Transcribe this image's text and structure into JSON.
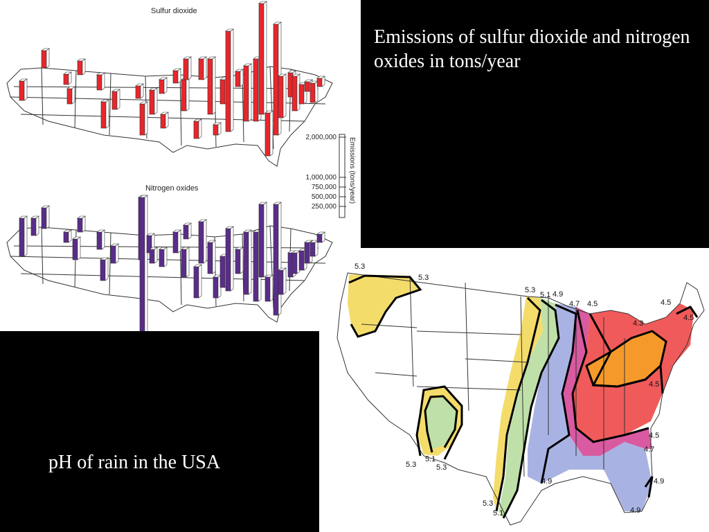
{
  "slide": {
    "emissions_caption": "Emissions of sulfur dioxide and nitrogen oxides in tons/year",
    "ph_caption": "pH of rain in the USA"
  },
  "emissions_figure": {
    "so2_title": "Sulfur dioxide",
    "nox_title": "Nitrogen oxides",
    "scale_axis_label": "Emissions (tons/year)",
    "scale_ticks": [
      "2,000,000",
      "1,000,000",
      "750,000",
      "500,000",
      "250,000"
    ],
    "so2_color": "#e8262b",
    "nox_color": "#5a2d8a"
  },
  "ph_map": {
    "zone_colors": {
      "5.3": "#f4dc6a",
      "5.1": "#bfe0a8",
      "4.9": "#a9b3e3",
      "4.7": "#d95aa0",
      "4.5": "#f05a5a",
      "4.3": "#f59a2a"
    },
    "contour_labels": [
      {
        "id": "pnw-53a",
        "text": "5.3"
      },
      {
        "id": "pnw-53b",
        "text": "5.3"
      },
      {
        "id": "n-53",
        "text": "5.3"
      },
      {
        "id": "n-51",
        "text": "5.1"
      },
      {
        "id": "n-49",
        "text": "4.9"
      },
      {
        "id": "n-47",
        "text": "4.7"
      },
      {
        "id": "n-45",
        "text": "4.5"
      },
      {
        "id": "ne-45a",
        "text": "4.5"
      },
      {
        "id": "ne-45b",
        "text": "4.5"
      },
      {
        "id": "oh-43",
        "text": "4.3"
      },
      {
        "id": "ma-45",
        "text": "4.5"
      },
      {
        "id": "se-45",
        "text": "4.5"
      },
      {
        "id": "se-47",
        "text": "4.7"
      },
      {
        "id": "fl-49a",
        "text": "4.9"
      },
      {
        "id": "fl-49b",
        "text": "4.9"
      },
      {
        "id": "s-49",
        "text": "4.9"
      },
      {
        "id": "s-53",
        "text": "5.3"
      },
      {
        "id": "s-51",
        "text": "5.1"
      },
      {
        "id": "sw-53a",
        "text": "5.3"
      },
      {
        "id": "sw-51",
        "text": "5.1"
      },
      {
        "id": "sw-53b",
        "text": "5.3"
      }
    ]
  }
}
